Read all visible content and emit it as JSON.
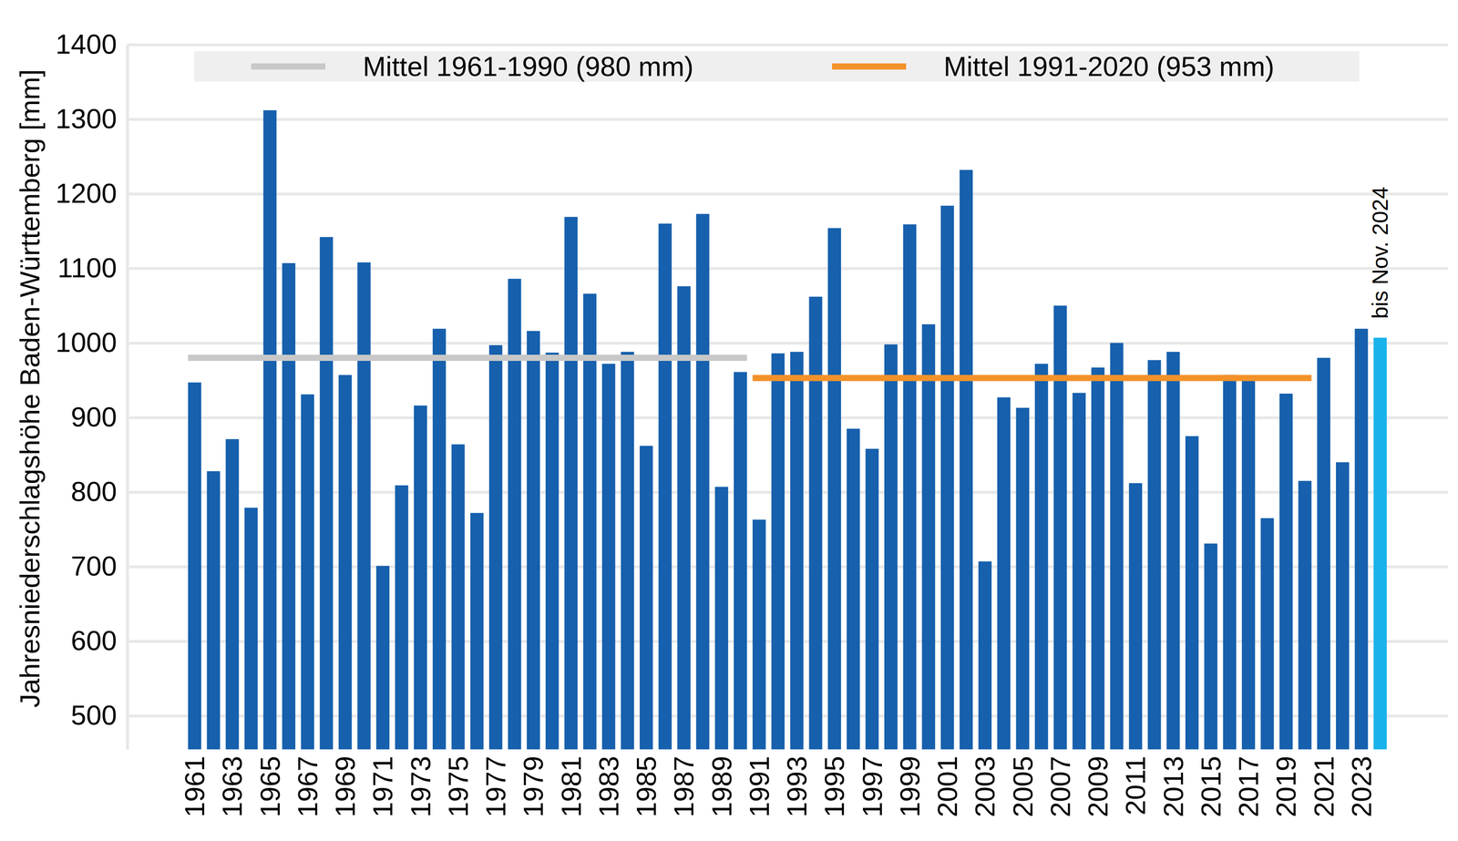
{
  "chart_data": {
    "type": "bar",
    "ylabel": "Jahresniederschlagshöhe Baden-Württemberg [mm]",
    "categories": [
      "1961",
      null,
      "1963",
      null,
      "1965",
      null,
      "1967",
      null,
      "1969",
      null,
      "1971",
      null,
      "1973",
      null,
      "1975",
      null,
      "1977",
      null,
      "1979",
      null,
      "1981",
      null,
      "1983",
      null,
      "1985",
      null,
      "1987",
      null,
      "1989",
      null,
      "1991",
      null,
      "1993",
      null,
      "1995",
      null,
      "1997",
      null,
      "1999",
      null,
      "2001",
      null,
      "2003",
      null,
      "2005",
      null,
      "2007",
      null,
      "2009",
      null,
      "2011",
      null,
      "2013",
      null,
      "2015",
      null,
      "2017",
      null,
      "2019",
      null,
      "2021",
      null,
      "2023",
      null
    ],
    "series": [
      {
        "type": "bar",
        "colors": [
          "#1660ad",
          "#1660ad",
          "#1660ad",
          "#1660ad",
          "#1660ad",
          "#1660ad",
          "#1660ad",
          "#1660ad",
          "#1660ad",
          "#1660ad",
          "#1660ad",
          "#1660ad",
          "#1660ad",
          "#1660ad",
          "#1660ad",
          "#1660ad",
          "#1660ad",
          "#1660ad",
          "#1660ad",
          "#1660ad",
          "#1660ad",
          "#1660ad",
          "#1660ad",
          "#1660ad",
          "#1660ad",
          "#1660ad",
          "#1660ad",
          "#1660ad",
          "#1660ad",
          "#1660ad",
          "#1660ad",
          "#1660ad",
          "#1660ad",
          "#1660ad",
          "#1660ad",
          "#1660ad",
          "#1660ad",
          "#1660ad",
          "#1660ad",
          "#1660ad",
          "#1660ad",
          "#1660ad",
          "#1660ad",
          "#1660ad",
          "#1660ad",
          "#1660ad",
          "#1660ad",
          "#1660ad",
          "#1660ad",
          "#1660ad",
          "#1660ad",
          "#1660ad",
          "#1660ad",
          "#1660ad",
          "#1660ad",
          "#1660ad",
          "#1660ad",
          "#1660ad",
          "#1660ad",
          "#1660ad",
          "#1660ad",
          "#1660ad",
          "#1660ad",
          "#1ab2ea"
        ],
        "values": [
          947,
          828,
          871,
          779,
          1312,
          1107,
          931,
          1142,
          957,
          1108,
          701,
          809,
          916,
          1019,
          864,
          772,
          997,
          1086,
          1016,
          987,
          1169,
          1066,
          972,
          988,
          862,
          1160,
          1076,
          1173,
          807,
          961,
          763,
          986,
          988,
          1062,
          1154,
          885,
          858,
          998,
          1159,
          1025,
          1184,
          1232,
          707,
          927,
          913,
          972,
          1050,
          933,
          967,
          1000,
          812,
          977,
          988,
          875,
          731,
          957,
          955,
          765,
          932,
          815,
          980,
          840,
          1019,
          1007
        ]
      },
      {
        "name": "Mittel 1961-1990 (980 mm)",
        "type": "line",
        "color": "#c8c8c8",
        "values": [
          980,
          980,
          980,
          980,
          980,
          980,
          980,
          980,
          980,
          980,
          980,
          980,
          980,
          980,
          980,
          980,
          980,
          980,
          980,
          980,
          980,
          980,
          980,
          980,
          980,
          980,
          980,
          980,
          980,
          980,
          null,
          null,
          null,
          null,
          null,
          null,
          null,
          null,
          null,
          null,
          null,
          null,
          null,
          null,
          null,
          null,
          null,
          null,
          null,
          null,
          null,
          null,
          null,
          null,
          null,
          null,
          null,
          null,
          null,
          null,
          null,
          null,
          null,
          null
        ]
      },
      {
        "name": "Mittel 1991-2020 (953 mm)",
        "type": "line",
        "color": "#f39229",
        "values": [
          null,
          null,
          null,
          null,
          null,
          null,
          null,
          null,
          null,
          null,
          null,
          null,
          null,
          null,
          null,
          null,
          null,
          null,
          null,
          null,
          null,
          null,
          null,
          null,
          null,
          null,
          null,
          null,
          null,
          null,
          953,
          953,
          953,
          953,
          953,
          953,
          953,
          953,
          953,
          953,
          953,
          953,
          953,
          953,
          953,
          953,
          953,
          953,
          953,
          953,
          953,
          953,
          953,
          953,
          953,
          953,
          953,
          953,
          953,
          953,
          null,
          null,
          null,
          null
        ]
      }
    ],
    "annotations": [
      "bis Nov. 2024"
    ],
    "ylim": [
      455,
      1400
    ],
    "yticks": [
      500,
      600,
      700,
      800,
      900,
      1000,
      1100,
      1200,
      1300,
      1400
    ],
    "grid": true,
    "legend": "top"
  }
}
